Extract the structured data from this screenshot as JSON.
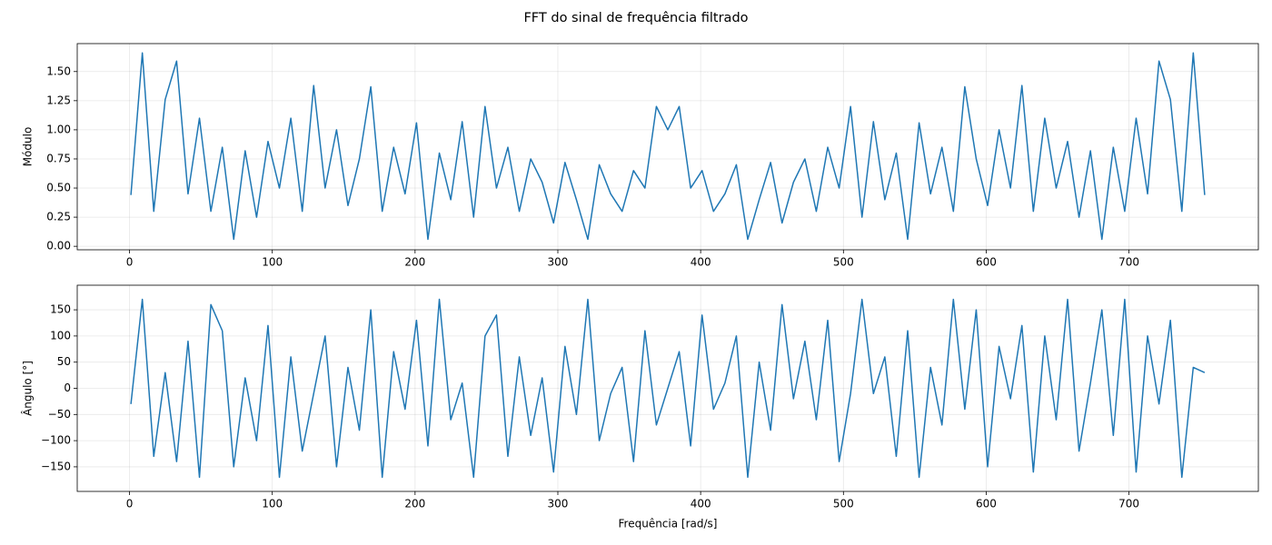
{
  "title": "FFT do sinal de frequência filtrado",
  "chart_data": [
    {
      "type": "line",
      "ylabel": "Módulo",
      "color": "#1f77b4",
      "grid": true,
      "xlim": [
        -36.6,
        790.6
      ],
      "xticks": [
        0,
        100,
        200,
        300,
        400,
        500,
        600,
        700
      ],
      "ylim": [
        -0.03,
        1.74
      ],
      "yticks": [
        {
          "value": 0,
          "label": "0.00"
        },
        {
          "value": 0.25,
          "label": "0.25"
        },
        {
          "value": 0.5,
          "label": "0.50"
        },
        {
          "value": 0.75,
          "label": "0.75"
        },
        {
          "value": 1,
          "label": "1.00"
        },
        {
          "value": 1.25,
          "label": "1.25"
        },
        {
          "value": 1.5,
          "label": "1.50"
        }
      ],
      "x": [
        1,
        9,
        17,
        25,
        33,
        41,
        49,
        57,
        65,
        73,
        81,
        89,
        97,
        105,
        113,
        121,
        129,
        137,
        145,
        153,
        161,
        169,
        177,
        185,
        193,
        201,
        209,
        217,
        225,
        233,
        241,
        249,
        257,
        265,
        273,
        281,
        289,
        297,
        305,
        313,
        321,
        329,
        337,
        345,
        353,
        361,
        369,
        377,
        385,
        393,
        401,
        409,
        417,
        425,
        433,
        441,
        449,
        457,
        465,
        473,
        481,
        489,
        497,
        505,
        513,
        521,
        529,
        537,
        545,
        553,
        561,
        569,
        577,
        585,
        593,
        601,
        609,
        617,
        625,
        633,
        641,
        649,
        657,
        665,
        673,
        681,
        689,
        697,
        705,
        713,
        721,
        729,
        737,
        745,
        753
      ],
      "values": [
        0.44,
        1.66,
        0.3,
        1.26,
        1.59,
        0.45,
        1.1,
        0.3,
        0.85,
        0.06,
        0.82,
        0.25,
        0.9,
        0.5,
        1.1,
        0.3,
        1.38,
        0.5,
        1.0,
        0.35,
        0.75,
        1.37,
        0.3,
        0.85,
        0.45,
        1.06,
        0.06,
        0.8,
        0.4,
        1.07,
        0.25,
        1.2,
        0.5,
        0.85,
        0.3,
        0.75,
        0.55,
        0.2,
        0.72,
        0.4,
        0.06,
        0.7,
        0.45,
        0.3,
        0.65,
        0.5,
        1.2,
        1.0,
        1.2,
        0.5,
        0.65,
        0.3,
        0.45,
        0.7,
        0.06,
        0.4,
        0.72,
        0.2,
        0.55,
        0.75,
        0.3,
        0.85,
        0.5,
        1.2,
        0.25,
        1.07,
        0.4,
        0.8,
        0.06,
        1.06,
        0.45,
        0.85,
        0.3,
        1.37,
        0.75,
        0.35,
        1.0,
        0.5,
        1.38,
        0.3,
        1.1,
        0.5,
        0.9,
        0.25,
        0.82,
        0.06,
        0.85,
        0.3,
        1.1,
        0.45,
        1.59,
        1.26,
        0.3,
        1.66,
        0.44
      ]
    },
    {
      "type": "line",
      "ylabel": "Ângulo [°]",
      "xlabel": "Frequência [rad/s]",
      "color": "#1f77b4",
      "grid": true,
      "xlim": [
        -36.6,
        790.6
      ],
      "xticks": [
        0,
        100,
        200,
        300,
        400,
        500,
        600,
        700
      ],
      "ylim": [
        -197,
        197
      ],
      "yticks": [
        {
          "value": -150,
          "label": "−150"
        },
        {
          "value": -100,
          "label": "−100"
        },
        {
          "value": -50,
          "label": "−50"
        },
        0,
        50,
        100,
        150
      ],
      "x": [
        1,
        9,
        17,
        25,
        33,
        41,
        49,
        57,
        65,
        73,
        81,
        89,
        97,
        105,
        113,
        121,
        129,
        137,
        145,
        153,
        161,
        169,
        177,
        185,
        193,
        201,
        209,
        217,
        225,
        233,
        241,
        249,
        257,
        265,
        273,
        281,
        289,
        297,
        305,
        313,
        321,
        329,
        337,
        345,
        353,
        361,
        369,
        377,
        385,
        393,
        401,
        409,
        417,
        425,
        433,
        441,
        449,
        457,
        465,
        473,
        481,
        489,
        497,
        505,
        513,
        521,
        529,
        537,
        545,
        553,
        561,
        569,
        577,
        585,
        593,
        601,
        609,
        617,
        625,
        633,
        641,
        649,
        657,
        665,
        673,
        681,
        689,
        697,
        705,
        713,
        721,
        729,
        737,
        745,
        753
      ],
      "values": [
        -30,
        170,
        -130,
        30,
        -140,
        90,
        -170,
        160,
        110,
        -150,
        20,
        -100,
        120,
        -170,
        60,
        -120,
        -10,
        100,
        -150,
        40,
        -80,
        150,
        -170,
        70,
        -40,
        130,
        -110,
        170,
        -60,
        10,
        -170,
        100,
        140,
        -130,
        60,
        -90,
        20,
        -160,
        80,
        -50,
        170,
        -100,
        -10,
        40,
        -140,
        110,
        -70,
        0,
        70,
        -110,
        140,
        -40,
        10,
        100,
        -170,
        50,
        -80,
        160,
        -20,
        90,
        -60,
        130,
        -140,
        -10,
        170,
        -10,
        60,
        -130,
        110,
        -170,
        40,
        -70,
        170,
        -40,
        150,
        -150,
        80,
        -20,
        120,
        -160,
        100,
        -60,
        170,
        -120,
        10,
        150,
        -90,
        170,
        -160,
        100,
        -30,
        130,
        -170,
        40,
        30
      ]
    }
  ]
}
